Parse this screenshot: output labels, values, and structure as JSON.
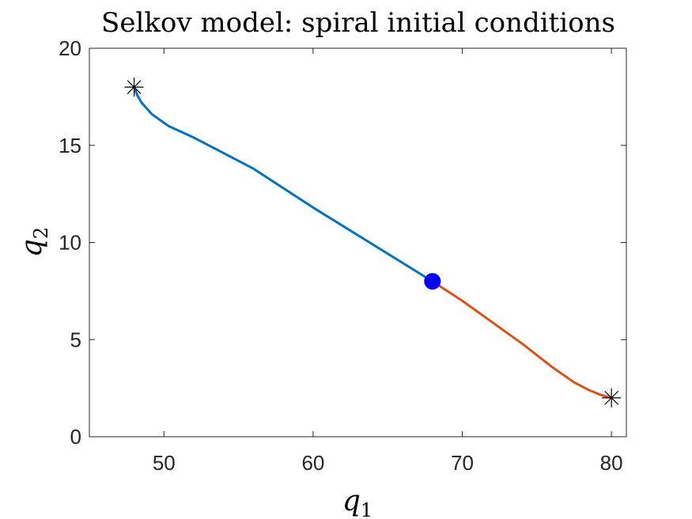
{
  "chart_data": {
    "type": "line",
    "title": "Selkov model: spiral initial conditions",
    "xlabel": {
      "base": "q",
      "sub": "1"
    },
    "ylabel": {
      "base": "q",
      "sub": "2"
    },
    "xlim": [
      45,
      81
    ],
    "ylim": [
      0,
      20
    ],
    "xticks": [
      50,
      60,
      70,
      80
    ],
    "yticks": [
      0,
      5,
      10,
      15,
      20
    ],
    "grid": false,
    "box": true,
    "series": [
      {
        "color": "#0072BD",
        "x": [
          68,
          64,
          60,
          56,
          52,
          50.3,
          49.2,
          48.5,
          48.2,
          48.0
        ],
        "y": [
          8,
          9.9,
          11.8,
          13.8,
          15.4,
          16.0,
          16.6,
          17.2,
          17.6,
          18.0
        ]
      },
      {
        "color": "#D95319",
        "x": [
          68,
          70,
          72,
          74,
          76,
          77.5,
          78.5,
          79.3,
          80.0
        ],
        "y": [
          8,
          7.0,
          5.9,
          4.8,
          3.6,
          2.8,
          2.4,
          2.15,
          2.0
        ]
      }
    ],
    "markers": [
      {
        "type": "asterisk",
        "x": 48,
        "y": 18,
        "color": "#000000"
      },
      {
        "type": "asterisk",
        "x": 80,
        "y": 2,
        "color": "#000000"
      },
      {
        "type": "dot",
        "x": 68,
        "y": 8,
        "color": "#0000FF"
      }
    ]
  }
}
